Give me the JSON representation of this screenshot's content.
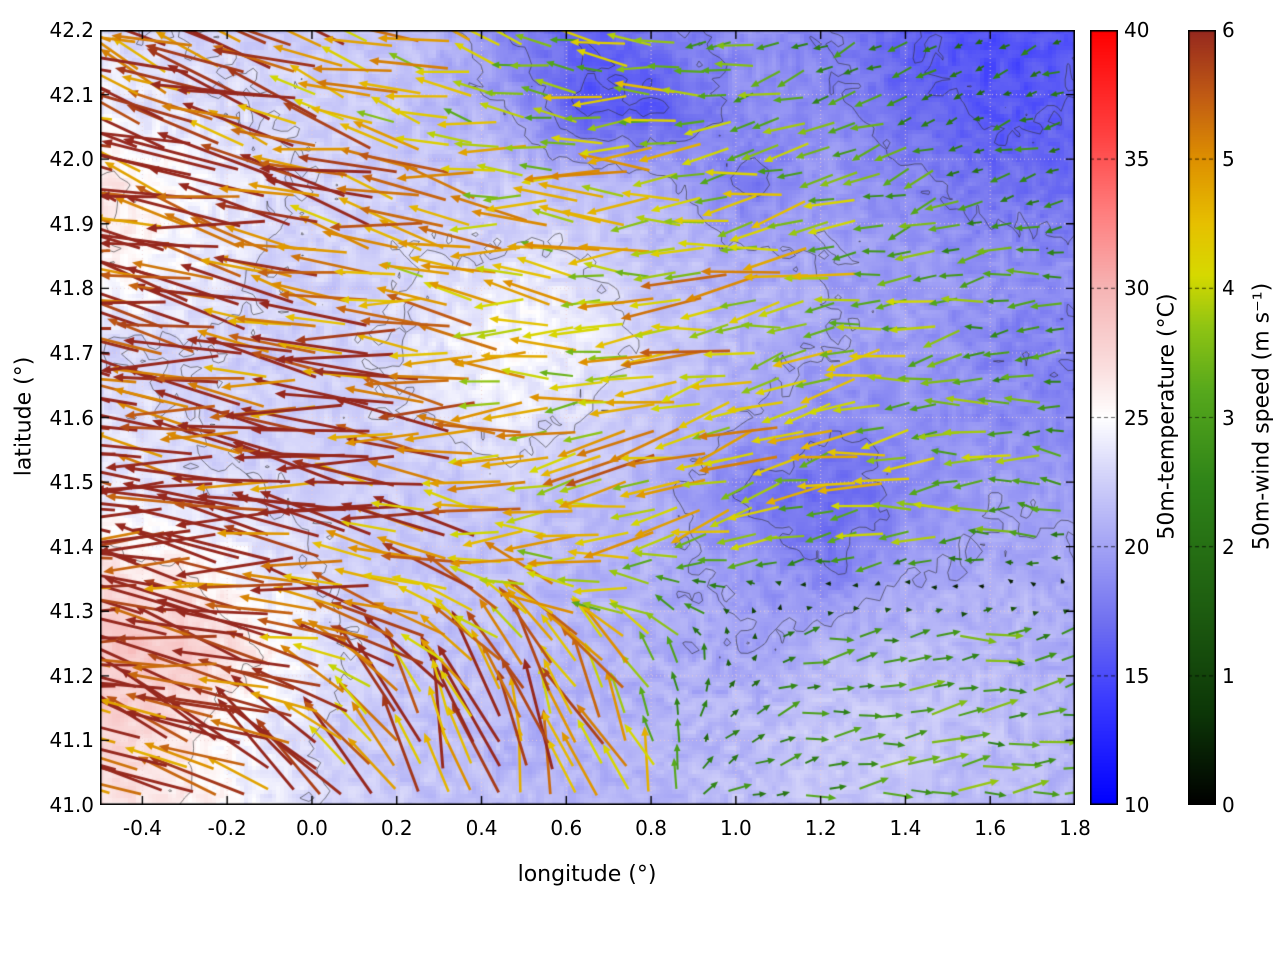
{
  "chart_data": {
    "type": "heatmap",
    "overlays": [
      "vector-field",
      "contour-lines"
    ],
    "title": "",
    "xlabel": "longitude (°)",
    "ylabel": "latitude (°)",
    "xlim": [
      -0.5,
      1.8
    ],
    "ylim": [
      41.0,
      42.2
    ],
    "grid": "dotted",
    "x_tick_values": [
      -0.4,
      -0.2,
      0.0,
      0.2,
      0.4,
      0.6,
      0.8,
      1.0,
      1.2,
      1.4,
      1.6,
      1.8
    ],
    "x_tick_labels": [
      "-0.4",
      "-0.2",
      "0.0",
      "0.2",
      "0.4",
      "0.6",
      "0.8",
      "1.0",
      "1.2",
      "1.4",
      "1.6",
      "1.8"
    ],
    "y_tick_values": [
      41.0,
      41.1,
      41.2,
      41.3,
      41.4,
      41.5,
      41.6,
      41.7,
      41.8,
      41.9,
      42.0,
      42.1,
      42.2
    ],
    "y_tick_labels": [
      "41.0",
      "41.1",
      "41.2",
      "41.3",
      "41.4",
      "41.5",
      "41.6",
      "41.7",
      "41.8",
      "41.9",
      "42.0",
      "42.1",
      "42.2"
    ],
    "temperature": {
      "label": "50m-temperature (°C)",
      "range": [
        10,
        40
      ],
      "tick_values": [
        10,
        15,
        20,
        25,
        30,
        35,
        40
      ],
      "tick_labels": [
        "10",
        "15",
        "20",
        "25",
        "30",
        "35",
        "40"
      ],
      "colormap": [
        [
          10,
          "#0000ff"
        ],
        [
          14,
          "#3a3aff"
        ],
        [
          17,
          "#6f6ff0"
        ],
        [
          20,
          "#a3a3f5"
        ],
        [
          23,
          "#d8d8fa"
        ],
        [
          25,
          "#ffffff"
        ],
        [
          27,
          "#fadddd"
        ],
        [
          30,
          "#f6b4b4"
        ],
        [
          33,
          "#ff7d7d"
        ],
        [
          36,
          "#ff4040"
        ],
        [
          40,
          "#ff0000"
        ]
      ],
      "values_grid": [
        [
          27,
          26,
          24,
          22.5,
          22,
          21.5,
          21,
          21,
          21.5,
          22,
          22,
          21.5,
          21
        ],
        [
          28,
          26.5,
          24,
          22.5,
          21.5,
          21,
          21,
          21,
          21.5,
          22,
          22,
          21.5,
          21
        ],
        [
          29,
          28.5,
          26,
          23,
          22,
          21.5,
          21,
          20.5,
          20,
          21,
          21.5,
          21,
          20.5
        ],
        [
          27,
          26,
          24,
          22.5,
          22,
          21.5,
          21,
          20.5,
          19.5,
          18,
          20,
          20.5,
          20.5
        ],
        [
          24,
          23.5,
          23,
          22.5,
          22,
          22,
          21.5,
          20.5,
          17.5,
          16.5,
          18.5,
          20,
          19.5
        ],
        [
          23.5,
          23,
          22.5,
          22.5,
          23,
          24,
          23,
          21.5,
          20,
          18.5,
          19,
          18.5,
          18.5
        ],
        [
          23,
          23,
          22.5,
          22.5,
          23.5,
          25,
          24,
          22,
          21,
          20,
          19.5,
          18.5,
          18
        ],
        [
          26,
          24.5,
          23,
          22.5,
          23,
          23.5,
          23,
          21.5,
          20.5,
          20,
          19.5,
          19,
          18.5
        ],
        [
          26.5,
          25,
          23.5,
          22.5,
          22,
          22,
          21.5,
          20.5,
          17.5,
          19.5,
          18.5,
          17,
          17
        ],
        [
          24,
          23.5,
          23,
          22.5,
          21.5,
          20,
          15.5,
          16,
          19,
          18.5,
          16.5,
          15.5,
          16
        ],
        [
          23.5,
          23,
          22.5,
          22,
          21.5,
          18,
          16,
          17.5,
          19,
          18,
          16,
          15,
          15.5
        ]
      ]
    },
    "wind": {
      "label": "50m-wind speed (m s⁻¹)",
      "range": [
        0,
        6
      ],
      "tick_values": [
        0,
        1,
        2,
        3,
        4,
        5,
        6
      ],
      "tick_labels": [
        "0",
        "1",
        "2",
        "3",
        "4",
        "5",
        "6"
      ],
      "colormap": [
        [
          0,
          "#000000"
        ],
        [
          0.7,
          "#0c3607"
        ],
        [
          1.5,
          "#1d5c10"
        ],
        [
          2.5,
          "#2f8418"
        ],
        [
          3.2,
          "#56a81c"
        ],
        [
          3.7,
          "#8fc413"
        ],
        [
          4.1,
          "#d6d900"
        ],
        [
          4.5,
          "#e6c000"
        ],
        [
          5,
          "#de9000"
        ],
        [
          5.5,
          "#c05a14"
        ],
        [
          6,
          "#96281e"
        ]
      ],
      "u": [
        [
          -4.5,
          -5,
          -4.5,
          -3,
          -1,
          -1.5,
          -2,
          2.2,
          2.8,
          3,
          3,
          2.8
        ],
        [
          -5.5,
          -5.5,
          -5,
          -4,
          -2,
          -2,
          -2.5,
          1.5,
          2.8,
          3,
          3,
          2.7
        ],
        [
          -6,
          -6,
          -5.5,
          -5,
          -4,
          -3.5,
          -3,
          -1,
          2.5,
          2.8,
          3,
          2.5
        ],
        [
          -6,
          -6,
          -6,
          -5.5,
          -5,
          -4.5,
          -4,
          -3.5,
          -3,
          -3.5,
          -3,
          -2.5
        ],
        [
          -6,
          -6,
          -6,
          -5.5,
          -5,
          -4.5,
          -4.5,
          -4,
          -4,
          -4,
          -3.5,
          -3
        ],
        [
          -6,
          -6,
          -5.5,
          -5.5,
          -5,
          -4,
          -4,
          -4.5,
          -4,
          -3.5,
          -3,
          -2.5
        ],
        [
          -6,
          -6,
          -5.5,
          -5,
          -4.5,
          -4,
          -4,
          -4.5,
          -4,
          -3.5,
          -3,
          -2.8
        ],
        [
          -5.5,
          -5.5,
          -5.5,
          -5,
          -4.5,
          -4,
          -4.5,
          -4,
          -3.5,
          -3,
          -2.5,
          -2.5
        ],
        [
          -5,
          -5.5,
          -5,
          -4.5,
          -4,
          -3.5,
          -4,
          -3.5,
          -3,
          -2.5,
          -2,
          -2.2
        ],
        [
          -5,
          -5,
          -5,
          -4.5,
          -4,
          -3.5,
          -3.5,
          -3,
          -2.5,
          -2,
          -1.8,
          -2
        ]
      ],
      "v": [
        [
          2.5,
          2.5,
          3,
          4.5,
          5.5,
          5,
          4.5,
          0.8,
          0.4,
          0.2,
          0.3,
          0.3
        ],
        [
          1.5,
          2,
          2,
          3,
          5,
          4.5,
          4,
          1.5,
          0.5,
          0.3,
          0.3,
          0.4
        ],
        [
          0.5,
          0.8,
          1,
          1.5,
          2.5,
          3,
          2.5,
          2,
          0.5,
          0.3,
          0.2,
          0.5
        ],
        [
          0.3,
          0.5,
          0.5,
          0.8,
          1,
          0,
          -1,
          -1,
          -0.5,
          -0.5,
          0,
          0.3
        ],
        [
          0.5,
          0.5,
          0.5,
          0.5,
          0.5,
          -0.5,
          -1,
          -1.5,
          -1,
          -0.5,
          0,
          0.5
        ],
        [
          0.8,
          0.8,
          0.8,
          0.5,
          0.5,
          0,
          -0.5,
          -1,
          -1,
          -0.5,
          -0.5,
          0
        ],
        [
          1,
          1,
          1,
          0.8,
          0.5,
          0.5,
          0,
          -0.5,
          -0.8,
          -0.8,
          -0.5,
          -0.3
        ],
        [
          1.5,
          1.5,
          1.2,
          1,
          0.8,
          0.5,
          0,
          -0.5,
          -1,
          -1,
          -0.8,
          -0.5
        ],
        [
          2,
          1.8,
          1.5,
          1.2,
          1,
          0.5,
          0,
          -0.5,
          -1,
          -1,
          -0.8,
          -0.5
        ],
        [
          2.2,
          2,
          1.8,
          1.5,
          1.2,
          0.8,
          0.3,
          -0.3,
          -0.8,
          -1,
          -0.8,
          -0.5
        ]
      ],
      "arrow_cols": 38,
      "arrow_rows": 30,
      "seed": 11
    },
    "contour_levels": [
      16,
      18,
      20,
      23,
      26
    ],
    "noise_seed": 5,
    "background": "#ffffff"
  }
}
